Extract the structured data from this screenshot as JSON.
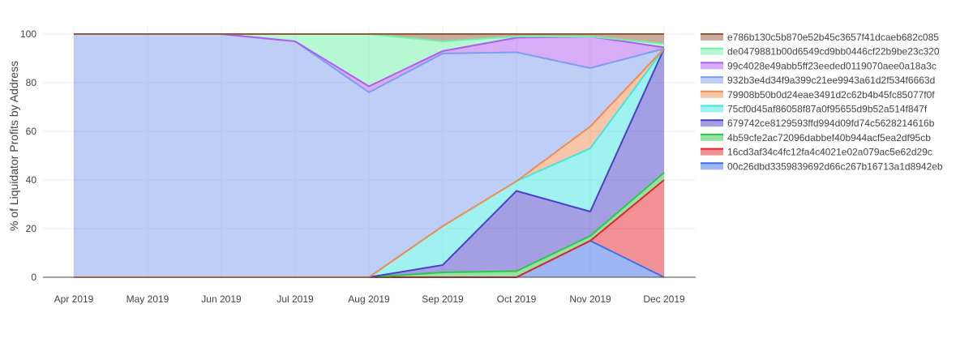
{
  "chart_data": {
    "type": "area",
    "stacked": true,
    "title": "",
    "xlabel": "",
    "ylabel": "% of Liquidator Profits by Address",
    "ylim": [
      0,
      103
    ],
    "yticks": [
      0,
      20,
      40,
      60,
      80,
      100
    ],
    "grid": true,
    "legend_position": "right",
    "categories": [
      "Apr 2019",
      "May 2019",
      "Jun 2019",
      "Jul 2019",
      "Aug 2019",
      "Sep 2019",
      "Oct 2019",
      "Nov 2019",
      "Dec 2019"
    ],
    "series": [
      {
        "name": "00c26dbd3359839692d66c267b16713a1d8942eb",
        "color": "#3c6ee8",
        "values": [
          0,
          0,
          0,
          0,
          0,
          0,
          0,
          15,
          0
        ]
      },
      {
        "name": "16cd3af34c4fc12fa4c4021e02a079ac5e62d29c",
        "color": "#e3242b",
        "values": [
          0,
          0,
          0,
          0,
          0,
          0,
          0,
          0,
          40
        ]
      },
      {
        "name": "4b59cfe2ac72096dabbef40b944acf5ea2df95cb",
        "color": "#2cc74a",
        "values": [
          0,
          0,
          0,
          0,
          0,
          2,
          2.5,
          2,
          3
        ]
      },
      {
        "name": "679742ce8129593ffd994d09fd74c5628214616b",
        "color": "#4a3fc8",
        "values": [
          0,
          0,
          0,
          0,
          0,
          3,
          33,
          10,
          51
        ]
      },
      {
        "name": "75cf0d45af86058f87a0f95655d9b52a514f847f",
        "color": "#3fe6e0",
        "values": [
          0,
          0,
          0,
          0,
          0,
          16,
          4,
          26,
          0
        ]
      },
      {
        "name": "79908b50b0d24eae3491d2c62b4b45fc85077f0f",
        "color": "#f08c50",
        "values": [
          0,
          0,
          0,
          0,
          0,
          0,
          0,
          9,
          0
        ]
      },
      {
        "name": "932b3e4d34f9a399c21ee9943a61d2f534f6663d",
        "color": "#7f9df0",
        "values": [
          100,
          100,
          100,
          97,
          76,
          71,
          53,
          24,
          0
        ]
      },
      {
        "name": "99c4028e49abb5ff23eeded0119070aee0a18a3c",
        "color": "#b05cf0",
        "values": [
          0,
          0,
          0,
          0,
          2.5,
          1,
          6,
          13,
          0.5
        ]
      },
      {
        "name": "de0479881b00d6549cd9bb0446cf22b9be23c320",
        "color": "#6ef2a5",
        "values": [
          0,
          0,
          0,
          3,
          21.5,
          4,
          0.5,
          0,
          1.5
        ]
      },
      {
        "name": "e786b130c5b870e52b45c3657f41dcaeb682c085",
        "color": "#96593b",
        "values": [
          0,
          0,
          0,
          0,
          0,
          3,
          1,
          1,
          4
        ]
      }
    ]
  }
}
